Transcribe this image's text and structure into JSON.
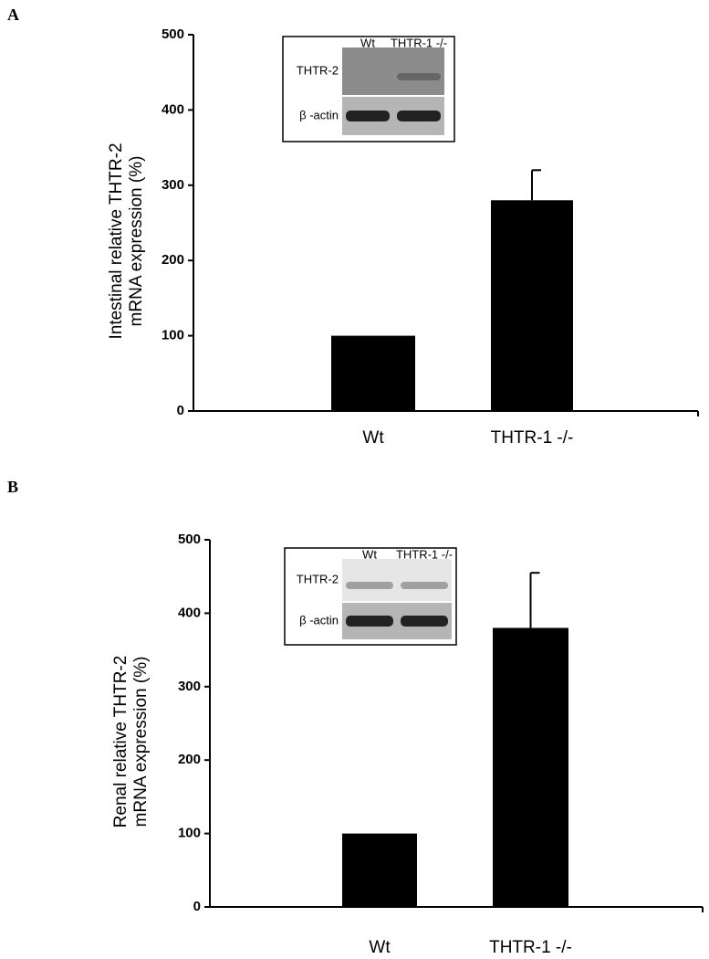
{
  "chart_data": [
    {
      "type": "bar",
      "panel_label": "A",
      "y_label": [
        "Intestinal relative THTR-2",
        "mRNA expression (%)"
      ],
      "categories": [
        "Wt",
        "THTR-1 -/-"
      ],
      "values": [
        100,
        280
      ],
      "errors": [
        0,
        40
      ],
      "color": "#000000",
      "ylim": [
        0,
        500
      ],
      "yticks": [
        0,
        100,
        200,
        300,
        400,
        500
      ],
      "inset": {
        "columns": [
          "Wt",
          "THTR-1 -/-"
        ],
        "rows": [
          "THTR-2",
          "β -actin"
        ]
      }
    },
    {
      "type": "bar",
      "panel_label": "B",
      "y_label": [
        "Renal relative THTR-2",
        "mRNA expression (%)"
      ],
      "categories": [
        "Wt",
        "THTR-1 -/-"
      ],
      "values": [
        100,
        380
      ],
      "errors": [
        0,
        75
      ],
      "color": "#000000",
      "ylim": [
        0,
        500
      ],
      "yticks": [
        0,
        100,
        200,
        300,
        400,
        500
      ],
      "inset": {
        "columns": [
          "Wt",
          "THTR-1 -/-"
        ],
        "rows": [
          "THTR-2",
          "β -actin"
        ]
      }
    }
  ]
}
